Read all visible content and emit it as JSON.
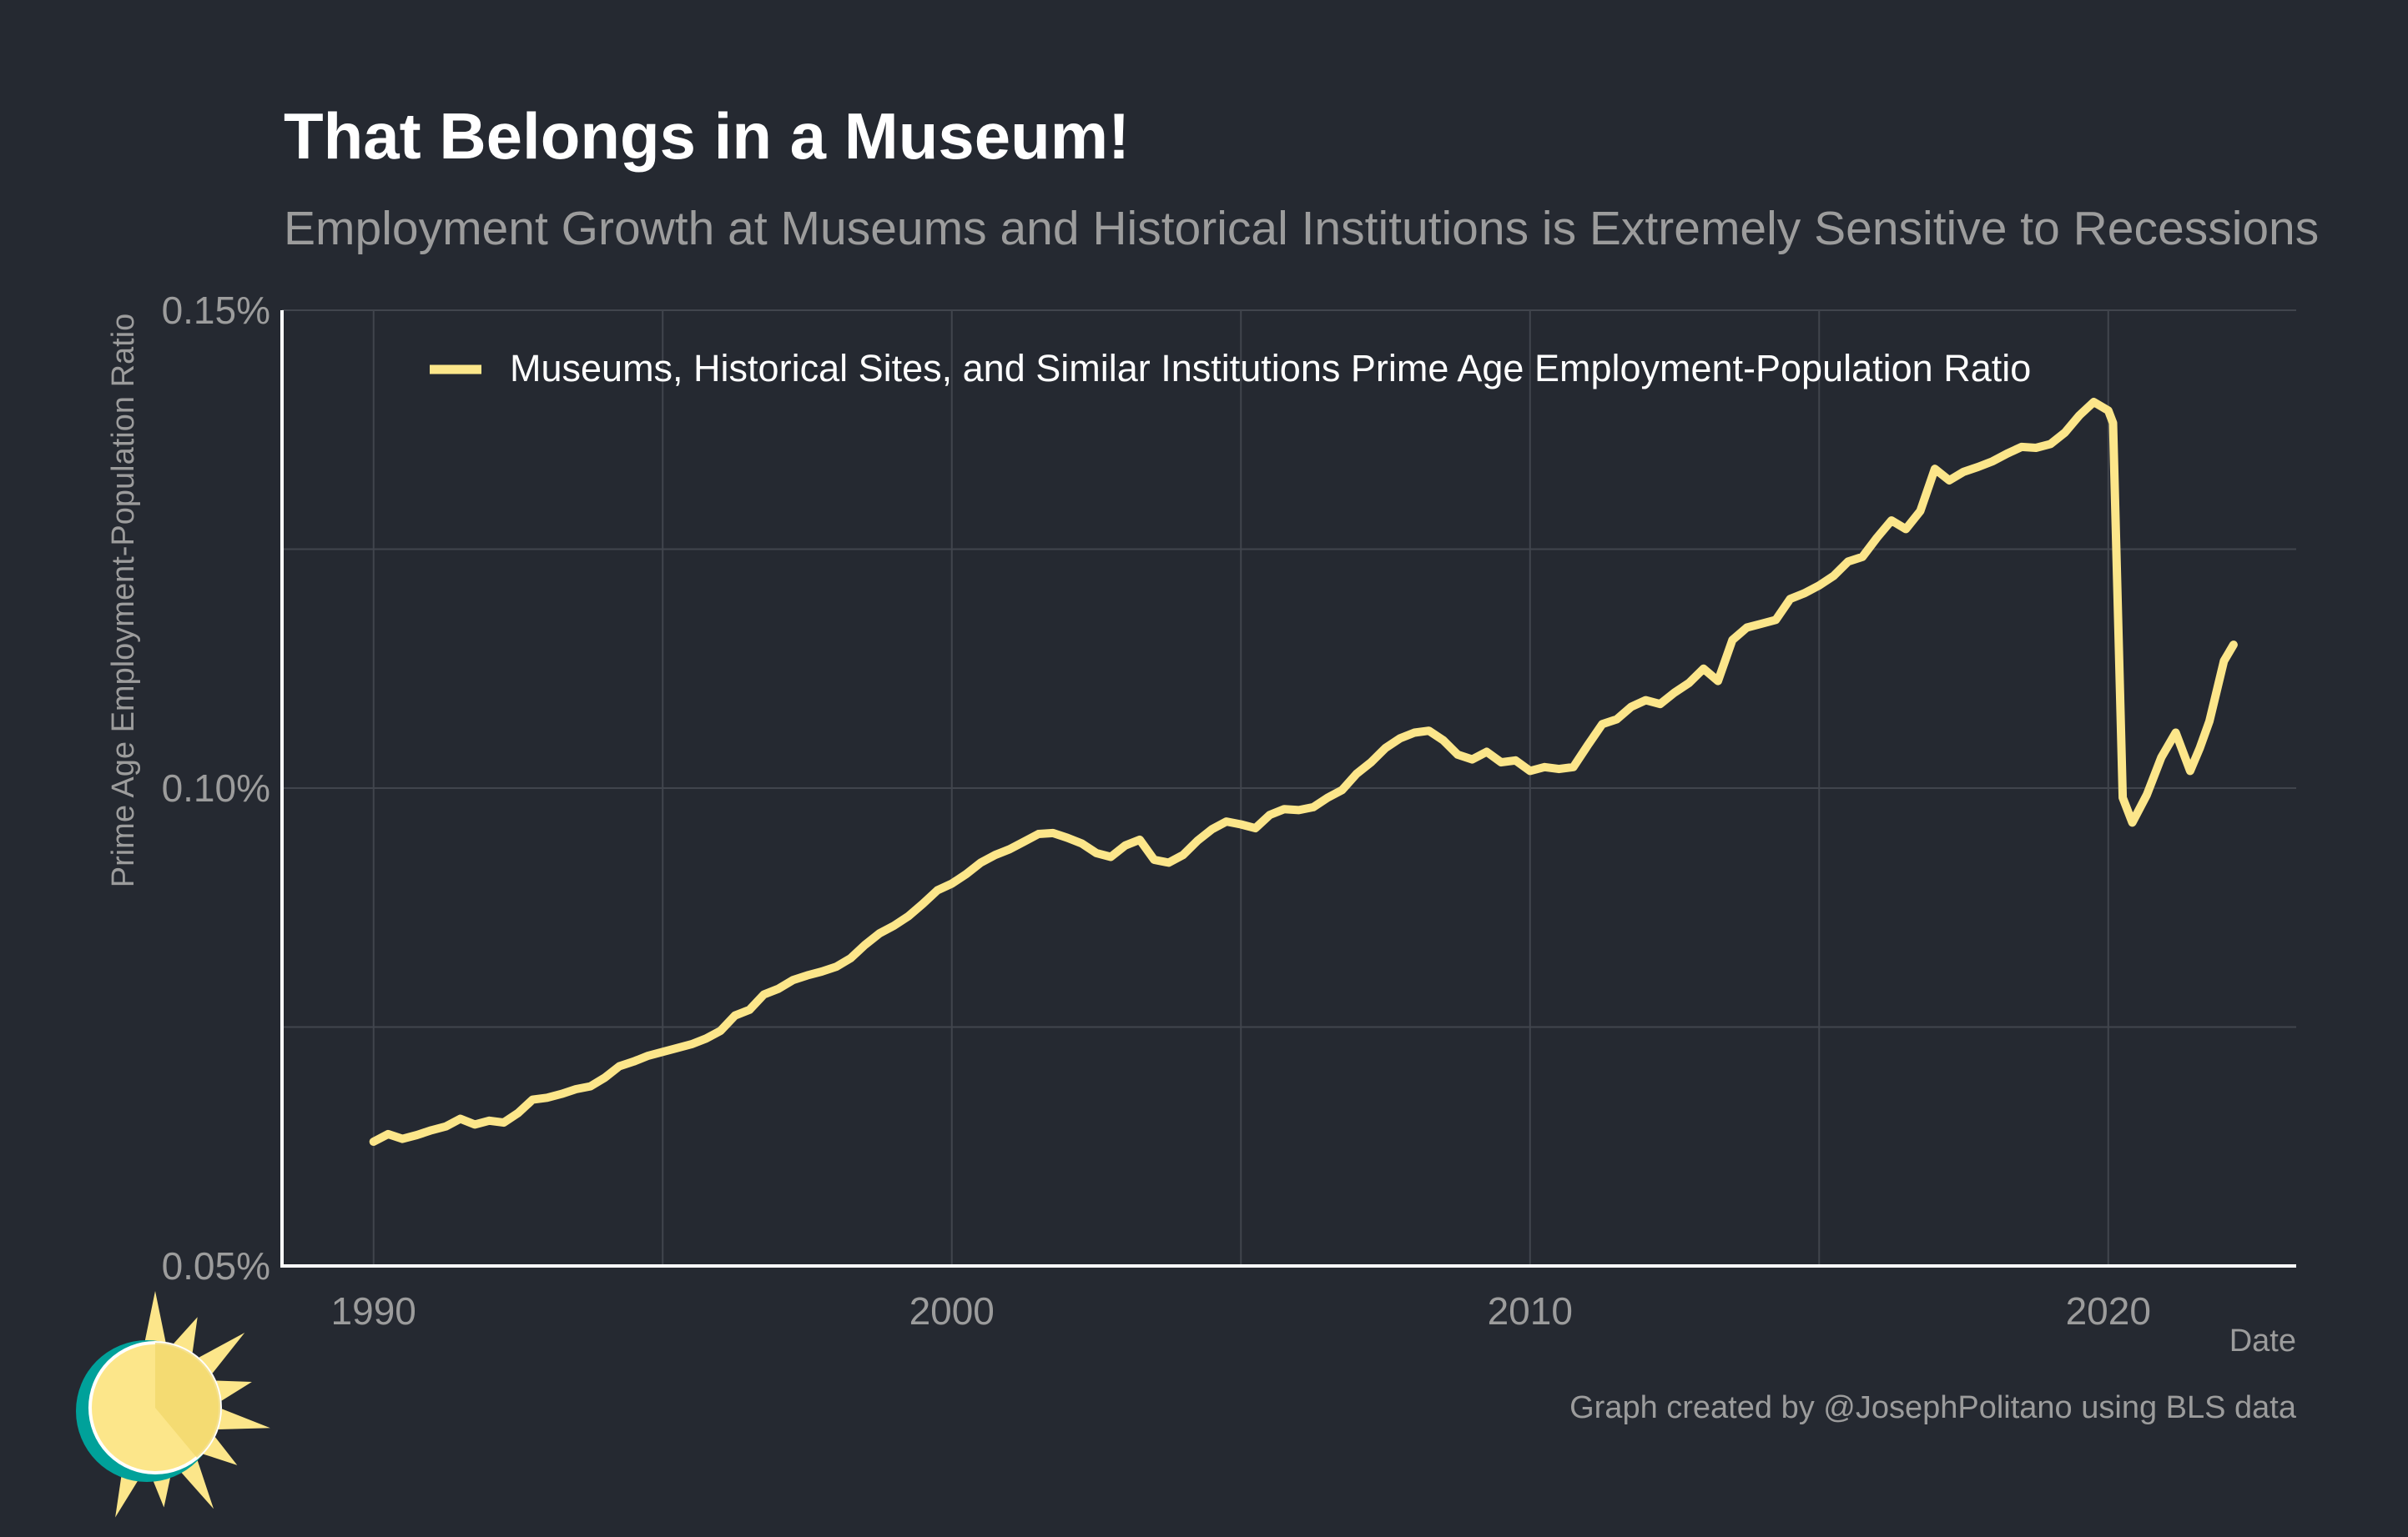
{
  "title": "That Belongs in a Museum!",
  "subtitle": "Employment Growth at Museums and Historical Institutions is Extremely Sensitive to Recessions",
  "credit": "Graph created by @JosephPolitano using BLS data",
  "logo_icon": "sun-icon",
  "colors": {
    "background": "#252931",
    "line": "#fce68a",
    "grid": "#41454d",
    "axis": "#ffffff",
    "muted_text": "#9c9c9c",
    "logo_ring": "#00a19a",
    "logo_sun": "#fce68a"
  },
  "chart_data": {
    "type": "line",
    "xlabel": "Date",
    "ylabel": "Prime Age Employment-Population Ratio",
    "xlim": [
      "1988-06",
      "2023-04"
    ],
    "ylim": [
      0.05,
      0.15
    ],
    "x_ticks": [
      "1990",
      "2000",
      "2010",
      "2020"
    ],
    "y_ticks": [
      "0.05%",
      "0.10%",
      "0.15%"
    ],
    "grid": true,
    "legend_position": "top",
    "series": [
      {
        "name": "Museums, Historical Sites, and Similar Institutions Prime Age Employment-Population Ratio",
        "color": "#fce68a",
        "points": [
          [
            "1990-01",
            0.063
          ],
          [
            "1990-04",
            0.0638
          ],
          [
            "1990-07",
            0.0633
          ],
          [
            "1990-10",
            0.0637
          ],
          [
            "1991-01",
            0.0642
          ],
          [
            "1991-04",
            0.0646
          ],
          [
            "1991-07",
            0.0654
          ],
          [
            "1991-10",
            0.0648
          ],
          [
            "1992-01",
            0.0652
          ],
          [
            "1992-04",
            0.065
          ],
          [
            "1992-07",
            0.066
          ],
          [
            "1992-10",
            0.0674
          ],
          [
            "1993-01",
            0.0676
          ],
          [
            "1993-04",
            0.068
          ],
          [
            "1993-07",
            0.0685
          ],
          [
            "1993-10",
            0.0688
          ],
          [
            "1994-01",
            0.0697
          ],
          [
            "1994-04",
            0.0709
          ],
          [
            "1994-07",
            0.0714
          ],
          [
            "1994-10",
            0.072
          ],
          [
            "1995-01",
            0.0724
          ],
          [
            "1995-04",
            0.0728
          ],
          [
            "1995-07",
            0.0732
          ],
          [
            "1995-10",
            0.0738
          ],
          [
            "1996-01",
            0.0746
          ],
          [
            "1996-04",
            0.0762
          ],
          [
            "1996-07",
            0.0768
          ],
          [
            "1996-10",
            0.0784
          ],
          [
            "1997-01",
            0.079
          ],
          [
            "1997-04",
            0.0799
          ],
          [
            "1997-07",
            0.0804
          ],
          [
            "1997-10",
            0.0808
          ],
          [
            "1998-01",
            0.0813
          ],
          [
            "1998-04",
            0.0822
          ],
          [
            "1998-07",
            0.0836
          ],
          [
            "1998-10",
            0.0848
          ],
          [
            "1999-01",
            0.0856
          ],
          [
            "1999-04",
            0.0866
          ],
          [
            "1999-07",
            0.0879
          ],
          [
            "1999-10",
            0.0893
          ],
          [
            "2000-01",
            0.09
          ],
          [
            "2000-04",
            0.091
          ],
          [
            "2000-07",
            0.0922
          ],
          [
            "2000-10",
            0.093
          ],
          [
            "2001-01",
            0.0936
          ],
          [
            "2001-04",
            0.0944
          ],
          [
            "2001-07",
            0.0952
          ],
          [
            "2001-10",
            0.0953
          ],
          [
            "2002-01",
            0.0948
          ],
          [
            "2002-04",
            0.0942
          ],
          [
            "2002-07",
            0.0932
          ],
          [
            "2002-10",
            0.0928
          ],
          [
            "2003-01",
            0.094
          ],
          [
            "2003-04",
            0.0946
          ],
          [
            "2003-07",
            0.0925
          ],
          [
            "2003-10",
            0.0922
          ],
          [
            "2004-01",
            0.093
          ],
          [
            "2004-04",
            0.0945
          ],
          [
            "2004-07",
            0.0957
          ],
          [
            "2004-10",
            0.0965
          ],
          [
            "2005-01",
            0.0962
          ],
          [
            "2005-04",
            0.0958
          ],
          [
            "2005-07",
            0.0972
          ],
          [
            "2005-10",
            0.0978
          ],
          [
            "2006-01",
            0.0977
          ],
          [
            "2006-04",
            0.098
          ],
          [
            "2006-07",
            0.099
          ],
          [
            "2006-10",
            0.0998
          ],
          [
            "2007-01",
            0.1015
          ],
          [
            "2007-04",
            0.1027
          ],
          [
            "2007-07",
            0.1042
          ],
          [
            "2007-10",
            0.1052
          ],
          [
            "2008-01",
            0.1058
          ],
          [
            "2008-04",
            0.106
          ],
          [
            "2008-07",
            0.105
          ],
          [
            "2008-10",
            0.1035
          ],
          [
            "2009-01",
            0.103
          ],
          [
            "2009-04",
            0.1038
          ],
          [
            "2009-07",
            0.1027
          ],
          [
            "2009-10",
            0.1029
          ],
          [
            "2010-01",
            0.1018
          ],
          [
            "2010-04",
            0.1022
          ],
          [
            "2010-07",
            0.102
          ],
          [
            "2010-10",
            0.1022
          ],
          [
            "2011-01",
            0.1045
          ],
          [
            "2011-04",
            0.1067
          ],
          [
            "2011-07",
            0.1072
          ],
          [
            "2011-10",
            0.1085
          ],
          [
            "2012-01",
            0.1092
          ],
          [
            "2012-04",
            0.1088
          ],
          [
            "2012-07",
            0.11
          ],
          [
            "2012-10",
            0.111
          ],
          [
            "2013-01",
            0.1125
          ],
          [
            "2013-04",
            0.1112
          ],
          [
            "2013-07",
            0.1155
          ],
          [
            "2013-10",
            0.1168
          ],
          [
            "2014-01",
            0.1172
          ],
          [
            "2014-04",
            0.1176
          ],
          [
            "2014-07",
            0.1198
          ],
          [
            "2014-10",
            0.1204
          ],
          [
            "2015-01",
            0.1212
          ],
          [
            "2015-04",
            0.1222
          ],
          [
            "2015-07",
            0.1237
          ],
          [
            "2015-10",
            0.1242
          ],
          [
            "2016-01",
            0.1262
          ],
          [
            "2016-04",
            0.128
          ],
          [
            "2016-07",
            0.1271
          ],
          [
            "2016-10",
            0.129
          ],
          [
            "2017-01",
            0.1334
          ],
          [
            "2017-04",
            0.1322
          ],
          [
            "2017-07",
            0.1331
          ],
          [
            "2017-10",
            0.1336
          ],
          [
            "2018-01",
            0.1342
          ],
          [
            "2018-04",
            0.135
          ],
          [
            "2018-07",
            0.1357
          ],
          [
            "2018-10",
            0.1356
          ],
          [
            "2019-01",
            0.136
          ],
          [
            "2019-04",
            0.1372
          ],
          [
            "2019-07",
            0.139
          ],
          [
            "2019-10",
            0.1404
          ],
          [
            "2020-01",
            0.1395
          ],
          [
            "2020-02",
            0.1382
          ],
          [
            "2020-04",
            0.099
          ],
          [
            "2020-06",
            0.0964
          ],
          [
            "2020-09",
            0.0993
          ],
          [
            "2020-12",
            0.1032
          ],
          [
            "2021-03",
            0.1058
          ],
          [
            "2021-06",
            0.1018
          ],
          [
            "2021-08",
            0.1042
          ],
          [
            "2021-10",
            0.107
          ],
          [
            "2022-01",
            0.1133
          ],
          [
            "2022-03",
            0.115
          ]
        ]
      }
    ]
  }
}
